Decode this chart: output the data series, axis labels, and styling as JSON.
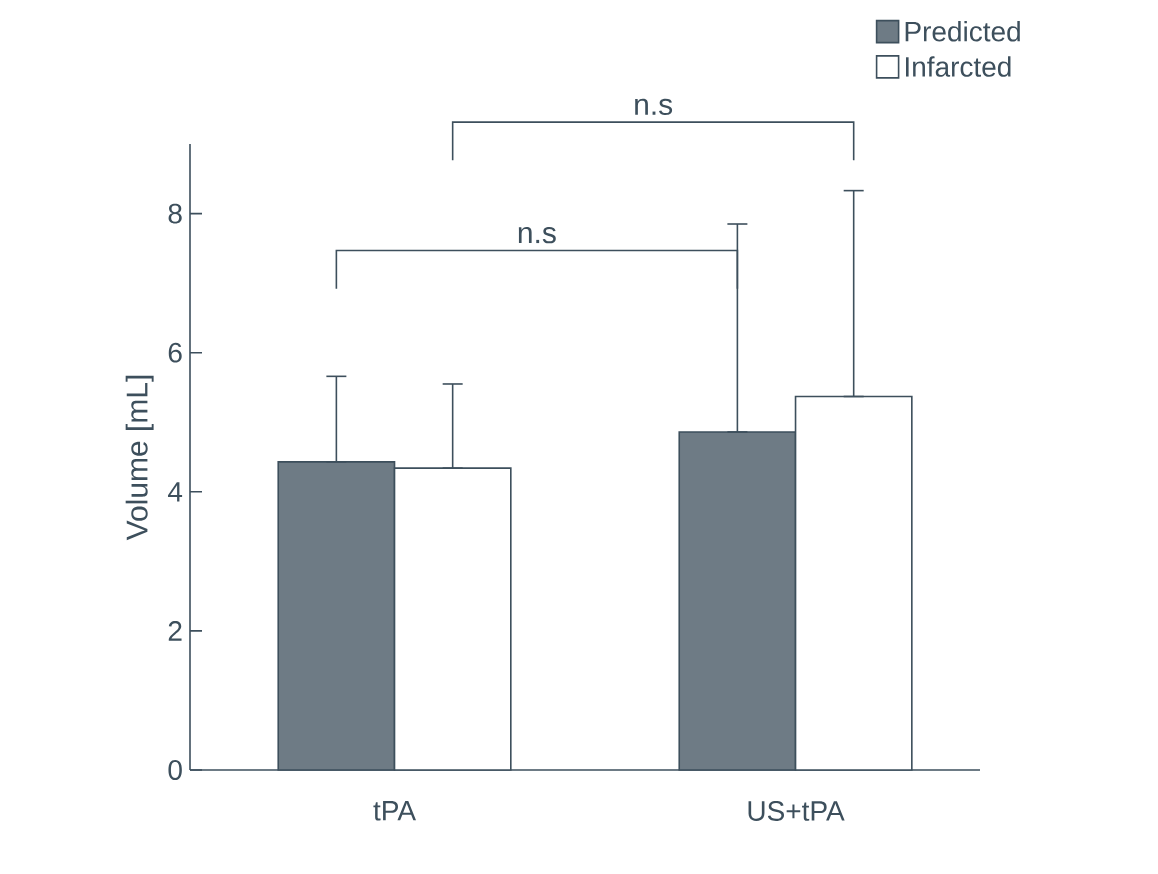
{
  "chart_data": {
    "type": "bar",
    "ylabel": "Volume [mL]",
    "categories": [
      "tPA",
      "US+tPA"
    ],
    "series": [
      {
        "name": "Predicted",
        "color": "#6e7b85",
        "values": [
          4.43,
          4.86
        ],
        "errors": [
          [
            4.43,
            5.66
          ],
          [
            4.86,
            7.85
          ]
        ]
      },
      {
        "name": "Infarcted",
        "color": "#ffffff",
        "values": [
          4.34,
          5.37
        ],
        "errors": [
          [
            4.34,
            5.55
          ],
          [
            5.37,
            8.33
          ]
        ]
      }
    ],
    "ylim": [
      0,
      9
    ],
    "yticks": [
      0,
      2,
      4,
      6,
      8
    ],
    "legend": "top right",
    "grid": false,
    "annotations": [
      "n.s",
      "n.s"
    ]
  }
}
